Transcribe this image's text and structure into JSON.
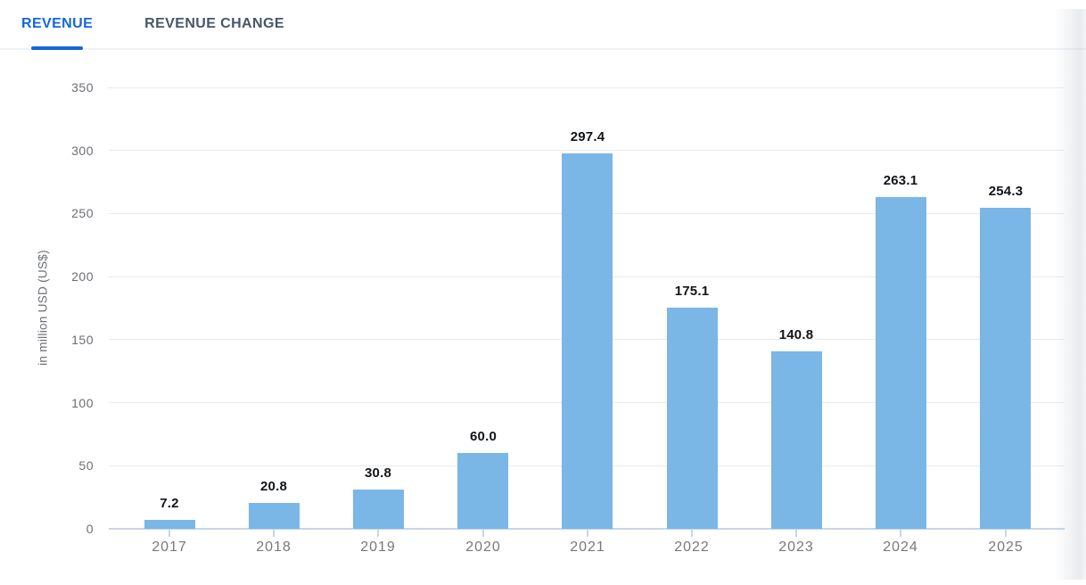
{
  "tabs": [
    {
      "label": "REVENUE",
      "active": true
    },
    {
      "label": "REVENUE CHANGE",
      "active": false
    }
  ],
  "chart_data": {
    "type": "bar",
    "categories": [
      "2017",
      "2018",
      "2019",
      "2020",
      "2021",
      "2022",
      "2023",
      "2024",
      "2025"
    ],
    "values": [
      7.2,
      20.8,
      30.8,
      60.0,
      297.4,
      175.1,
      140.8,
      263.1,
      254.3
    ],
    "value_labels": [
      "7.2",
      "20.8",
      "30.8",
      "60.0",
      "297.4",
      "175.1",
      "140.8",
      "263.1",
      "254.3"
    ],
    "title": "",
    "xlabel": "",
    "ylabel": "in million USD (US$)",
    "ylim": [
      0,
      350
    ],
    "yticks": [
      0,
      50,
      100,
      150,
      200,
      250,
      300,
      350
    ],
    "grid": true,
    "legend": "none"
  },
  "colors": {
    "accent": "#1567d8",
    "tab_inactive": "#47566a",
    "bar": "#7ab6e6",
    "grid": "#e9eaec",
    "axis": "#c7d6e4"
  }
}
